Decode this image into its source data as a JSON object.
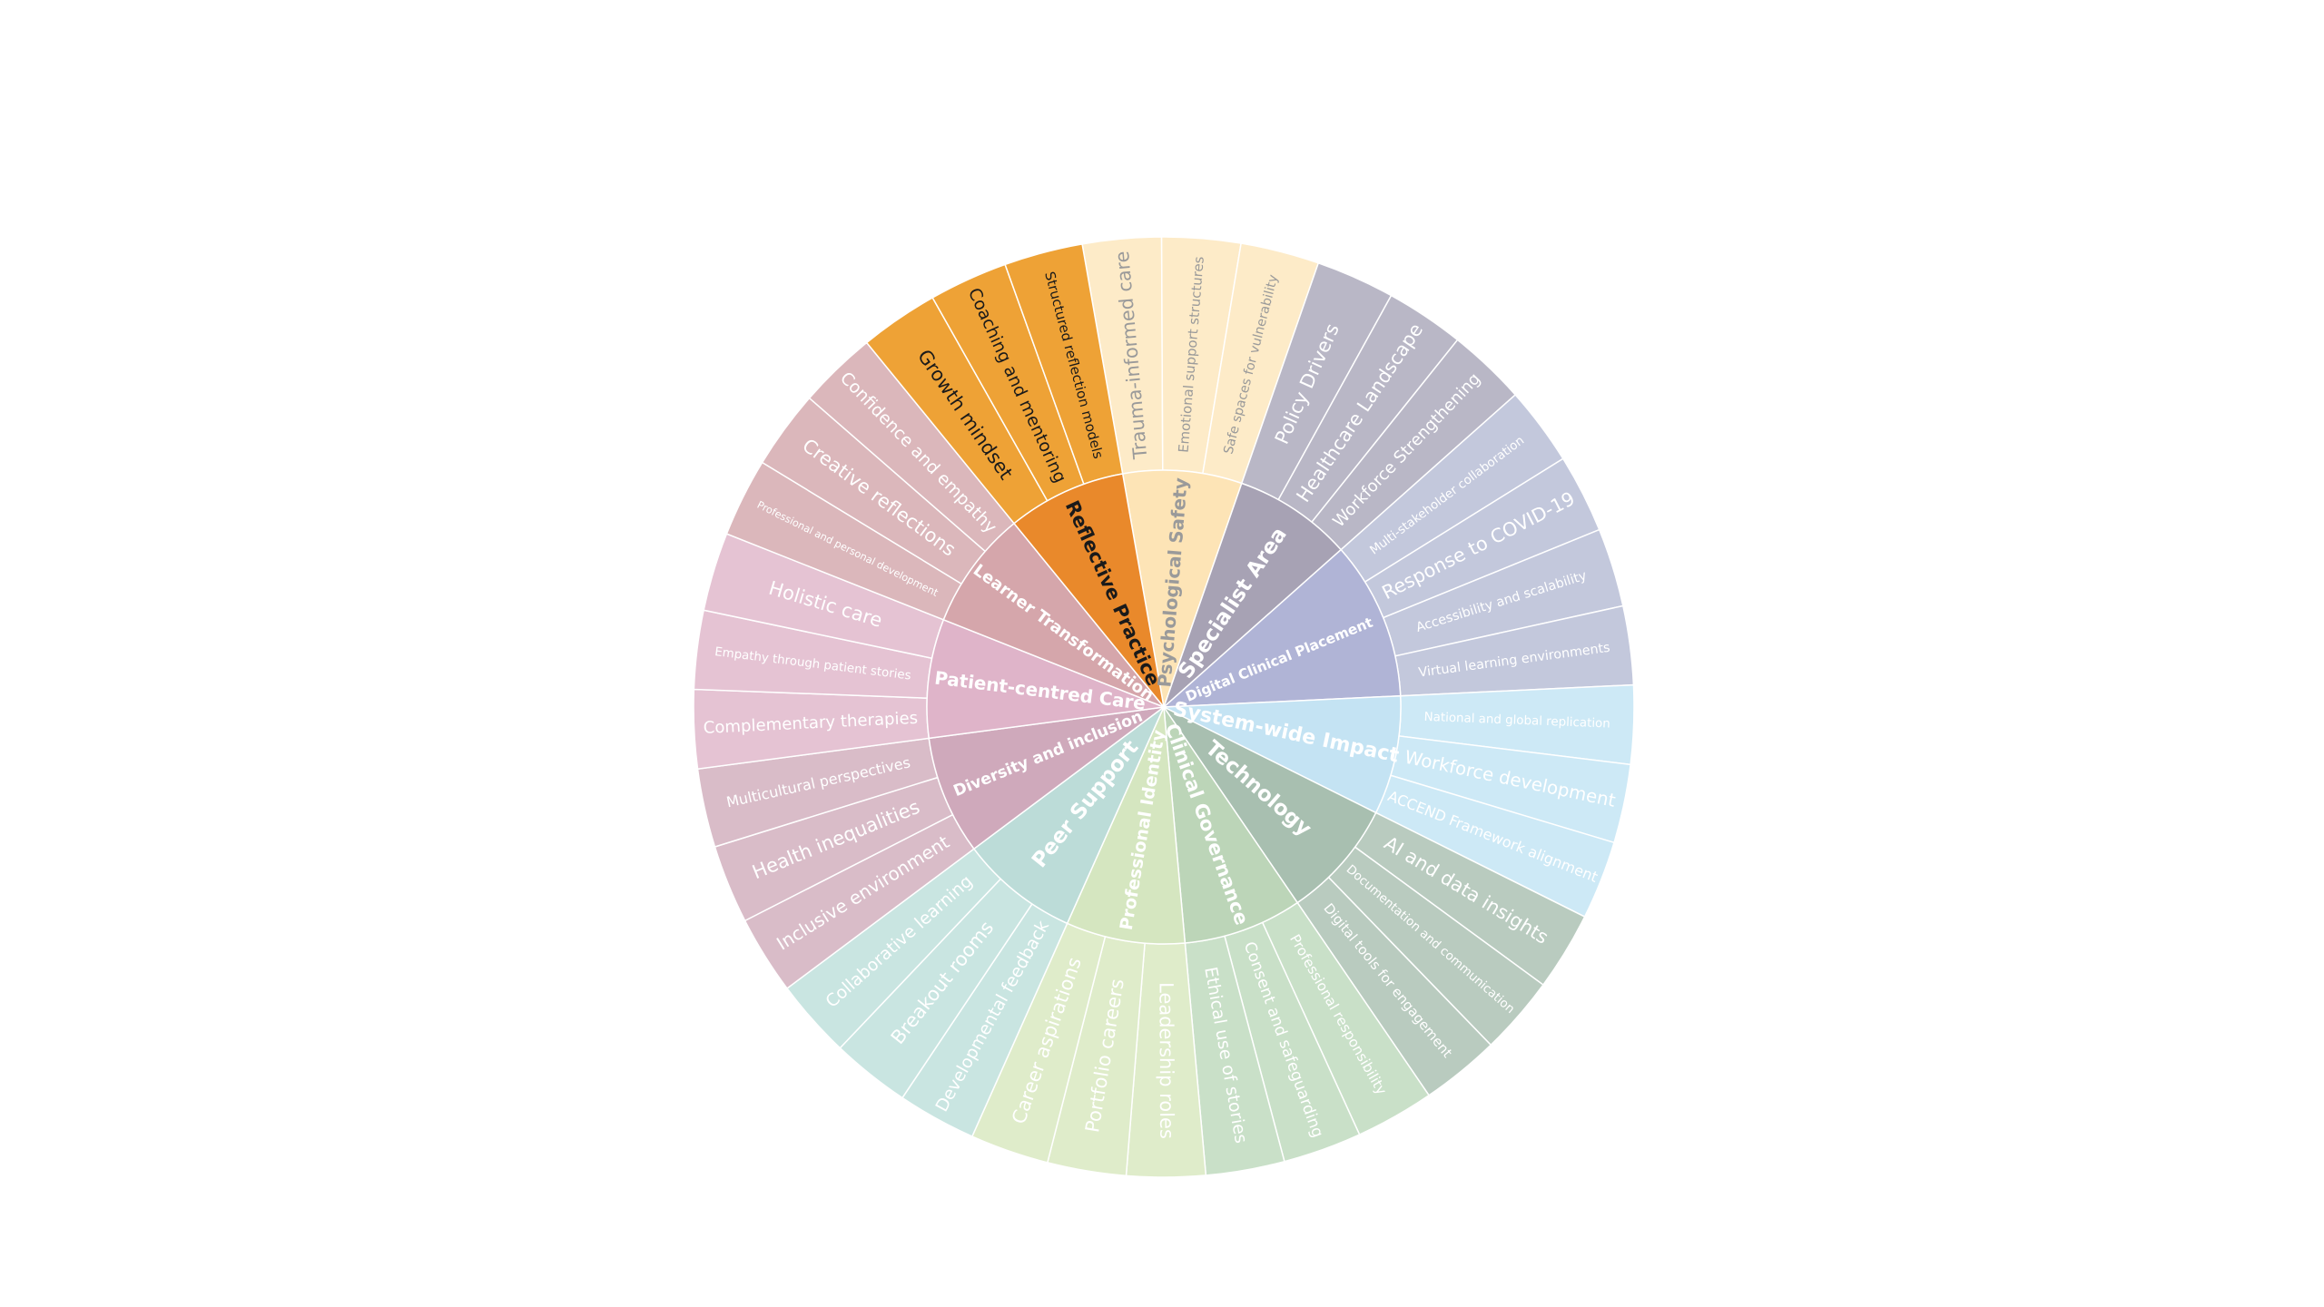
{
  "chart_data": {
    "type": "sunburst",
    "nodes": [
      {
        "name": "Psychological Safety",
        "color": "#fde4b6",
        "label_color": "#9a9a9a",
        "children": [
          {
            "name": "Trauma-informed care",
            "color": "#fdebc8",
            "value": 1
          },
          {
            "name": "Emotional support structures",
            "color": "#fdebc8",
            "value": 1
          },
          {
            "name": "Safe spaces for vulnerability",
            "color": "#fdebc8",
            "value": 1
          }
        ]
      },
      {
        "name": "Specialist Area",
        "color": "#a7a2b4",
        "label_color": "#ffffff",
        "children": [
          {
            "name": "Policy Drivers",
            "color": "#b9b7c6",
            "value": 1
          },
          {
            "name": "Healthcare Landscape",
            "color": "#b9b7c6",
            "value": 1
          },
          {
            "name": "Workforce Strengthening",
            "color": "#b9b7c6",
            "value": 1
          }
        ]
      },
      {
        "name": "Digital Clinical Placement",
        "color": "#b0b4d6",
        "label_color": "#ffffff",
        "children": [
          {
            "name": "Multi-stakeholder collaboration",
            "color": "#c3c8dc",
            "value": 1
          },
          {
            "name": "Response to COVID-19",
            "color": "#c3c8dc",
            "value": 1
          },
          {
            "name": "Accessibility and scalability",
            "color": "#c3c8dc",
            "value": 1
          },
          {
            "name": "Virtual learning environments",
            "color": "#c3c8dc",
            "value": 1
          }
        ]
      },
      {
        "name": "System-wide Impact",
        "color": "#c4e3f3",
        "label_color": "#ffffff",
        "children": [
          {
            "name": "National and global replication",
            "color": "#cde9f6",
            "value": 1
          },
          {
            "name": "Workforce development",
            "color": "#cde9f6",
            "value": 1
          },
          {
            "name": "ACCEND Framework alignment",
            "color": "#cde9f6",
            "value": 1
          }
        ]
      },
      {
        "name": "Technology",
        "color": "#a8bfb0",
        "label_color": "#ffffff",
        "children": [
          {
            "name": "AI and data insights",
            "color": "#b9cbbf",
            "value": 1
          },
          {
            "name": "Documentation and communication",
            "color": "#b9cbbf",
            "value": 1
          },
          {
            "name": "Digital tools for engagement",
            "color": "#b9cbbf",
            "value": 1
          }
        ]
      },
      {
        "name": "Clinical Governance",
        "color": "#bcd5b8",
        "label_color": "#ffffff",
        "children": [
          {
            "name": "Professional responsibility",
            "color": "#c9e0c8",
            "value": 1
          },
          {
            "name": "Consent and safeguarding",
            "color": "#c9e0c8",
            "value": 1
          },
          {
            "name": "Ethical use of stories",
            "color": "#c9e0c8",
            "value": 1
          }
        ]
      },
      {
        "name": "Professional Identity",
        "color": "#d5e6c0",
        "label_color": "#ffffff",
        "children": [
          {
            "name": "Leadership roles",
            "color": "#dfecca",
            "value": 1
          },
          {
            "name": "Portfolio careers",
            "color": "#dfecca",
            "value": 1
          },
          {
            "name": "Career aspirations",
            "color": "#dfecca",
            "value": 1
          }
        ]
      },
      {
        "name": "Peer Support",
        "color": "#bcdcd8",
        "label_color": "#ffffff",
        "children": [
          {
            "name": "Developmental feedback",
            "color": "#c9e5e1",
            "value": 1
          },
          {
            "name": "Breakout rooms",
            "color": "#c9e5e1",
            "value": 1
          },
          {
            "name": "Collaborative learning",
            "color": "#c9e5e1",
            "value": 1
          }
        ]
      },
      {
        "name": "Diversity and inclusion",
        "color": "#cfa9bb",
        "label_color": "#ffffff",
        "children": [
          {
            "name": "Inclusive environment",
            "color": "#d9bcc8",
            "value": 1
          },
          {
            "name": "Health inequalities",
            "color": "#d9bcc8",
            "value": 1
          },
          {
            "name": "Multicultural perspectives",
            "color": "#d9bcc8",
            "value": 1
          }
        ]
      },
      {
        "name": "Patient-centred Care",
        "color": "#dfb4c9",
        "label_color": "#ffffff",
        "children": [
          {
            "name": "Complementary therapies",
            "color": "#e5c3d3",
            "value": 1
          },
          {
            "name": "Empathy through patient stories",
            "color": "#e5c3d3",
            "value": 1
          },
          {
            "name": "Holistic care",
            "color": "#e5c3d3",
            "value": 1
          }
        ]
      },
      {
        "name": "Learner Transformation",
        "color": "#d5a6ab",
        "label_color": "#ffffff",
        "children": [
          {
            "name": "Professional and personal development",
            "color": "#dbb7bb",
            "value": 1
          },
          {
            "name": "Creative reflections",
            "color": "#dbb7bb",
            "value": 1
          },
          {
            "name": "Confidence and empathy",
            "color": "#dbb7bb",
            "value": 1
          }
        ]
      },
      {
        "name": "Reflective Practice",
        "color": "#e9892b",
        "label_color": "#1a1a1a",
        "children": [
          {
            "name": "Growth mindset",
            "color": "#eea236",
            "value": 1
          },
          {
            "name": "Coaching and mentoring",
            "color": "#eea236",
            "value": 1
          },
          {
            "name": "Structured reflection models",
            "color": "#eea236",
            "value": 1
          }
        ]
      }
    ]
  }
}
